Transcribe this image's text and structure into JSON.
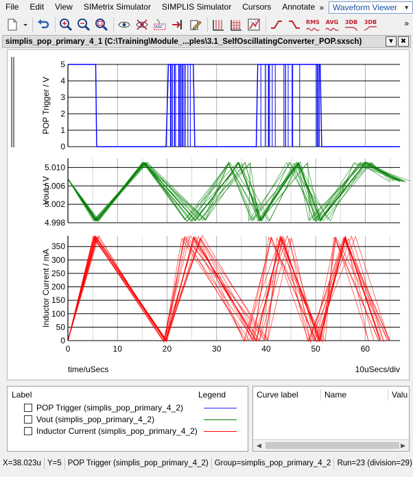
{
  "menu": {
    "items": [
      "File",
      "Edit",
      "View",
      "SIMetrix Simulator",
      "SIMPLIS Simulator",
      "Cursors",
      "Annotate"
    ],
    "overflow": "»",
    "viewer_select": "Waveform Viewer"
  },
  "toolbar": {
    "icons": [
      "new-icon",
      "dropdown-icon",
      "undo-icon",
      "zoom-in-icon",
      "zoom-out-icon",
      "zoom-fit-icon",
      "eye-icon",
      "hide-icon",
      "label-icon",
      "probe-icon",
      "edit-icon",
      "grid-icon",
      "grid-fine-icon",
      "chart-icon",
      "rise-icon",
      "fall-icon",
      "rms-icon",
      "avg-icon",
      "db-icon",
      "3db-icon"
    ],
    "rms": "RMS",
    "avg": "AVG",
    "db3": "3DB",
    "db3b": "3DB",
    "overflow": "»"
  },
  "document": {
    "title": "simplis_pop_primary_4_1 (C:\\Training\\Module_...ples\\3.1_SelfOscillatingConverter_POP.sxsch)",
    "dropdown": "▼",
    "close": "✖"
  },
  "graph": {
    "x_label": "time/uSecs",
    "x_div": "10uSecs/div"
  },
  "chart_data": [
    {
      "type": "line",
      "ylabel": "POP Trigger / V",
      "ylim": [
        0,
        5
      ],
      "yticks": [
        "5",
        "4",
        "3",
        "2",
        "1",
        "0"
      ],
      "xlim": [
        0,
        67
      ],
      "color": "#0000ff",
      "series": [
        {
          "name": "POP Trigger (simplis_pop_primary_4_2)",
          "x": [
            0,
            5.6,
            5.8,
            19.8,
            20.3,
            25.3,
            25.6,
            38.0,
            38.3,
            50.9,
            51.2,
            67
          ],
          "values": [
            5,
            5,
            0,
            0,
            5,
            5,
            0,
            0,
            5,
            5,
            0,
            0
          ]
        }
      ]
    },
    {
      "type": "line",
      "ylabel": "Vout / V",
      "ylim": [
        4.998,
        5.012
      ],
      "yticks": [
        "5.010",
        "5.006",
        "5.002",
        "4.998"
      ],
      "xlim": [
        0,
        67
      ],
      "color": "#008000",
      "series": [
        {
          "name": "Vout (simplis_pop_primary_4_2)",
          "x": [
            0,
            5.7,
            15.5,
            25.7,
            34.5,
            38.8,
            46.5,
            51.0,
            60.0,
            67
          ],
          "values": [
            5.0075,
            4.9985,
            5.011,
            4.9985,
            5.011,
            4.9985,
            5.011,
            4.9985,
            5.011,
            5.007
          ]
        }
      ]
    },
    {
      "type": "line",
      "ylabel": "Inductor Current / mA",
      "ylim": [
        0,
        390
      ],
      "yticks": [
        "350",
        "300",
        "250",
        "200",
        "150",
        "100",
        "50",
        "0"
      ],
      "xticks": [
        "0",
        "10",
        "20",
        "30",
        "40",
        "50",
        "60"
      ],
      "xlim": [
        0,
        67
      ],
      "color": "#ff0000",
      "series": [
        {
          "name": "Inductor Current (simplis_pop_primary_4_2)",
          "x": [
            0,
            5.7,
            19.8,
            25.4,
            38.0,
            43.0,
            50.8,
            56.0,
            63.0
          ],
          "values": [
            0,
            385,
            0,
            385,
            0,
            385,
            0,
            385,
            0
          ]
        }
      ]
    }
  ],
  "legend_panel": {
    "col_label": "Label",
    "col_legend": "Legend",
    "rows": [
      {
        "label": "POP Trigger (simplis_pop_primary_4_2)",
        "color": "#1f1fff"
      },
      {
        "label": "Vout (simplis_pop_primary_4_2)",
        "color": "#008000"
      },
      {
        "label": "Inductor Current (simplis_pop_primary_4_2)",
        "color": "#ff0000"
      }
    ]
  },
  "curve_panel": {
    "col_curve": "Curve label",
    "col_name": "Name",
    "col_value": "Valu"
  },
  "status": {
    "x": "X=38.023u",
    "y": "Y=5",
    "curve": "POP Trigger (simplis_pop_primary_4_2)",
    "group": "Group=simplis_pop_primary_4_2",
    "run": "Run=23 (division=29)"
  }
}
